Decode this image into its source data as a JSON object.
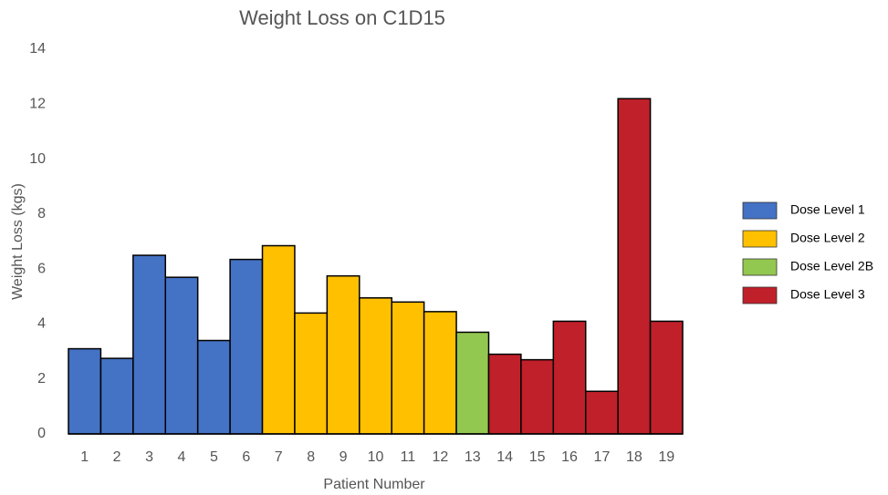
{
  "chart_data": {
    "type": "bar",
    "title": "Weight Loss on C1D15",
    "x_label": "Patient Number",
    "y_label": "Weight Loss (kgs)",
    "categories": [
      "1",
      "2",
      "3",
      "4",
      "5",
      "6",
      "7",
      "8",
      "9",
      "10",
      "11",
      "12",
      "13",
      "14",
      "15",
      "16",
      "17",
      "18",
      "19"
    ],
    "series": [
      {
        "name": "Dose Level 1",
        "color": "#4472c4",
        "values": [
          3.1,
          2.75,
          6.5,
          5.7,
          3.4,
          6.35,
          null,
          null,
          null,
          null,
          null,
          null,
          null,
          null,
          null,
          null,
          null,
          null,
          null
        ]
      },
      {
        "name": "Dose Level 2",
        "color": "#ffc000",
        "values": [
          null,
          null,
          null,
          null,
          null,
          null,
          6.85,
          4.4,
          5.75,
          4.95,
          4.8,
          4.45,
          null,
          null,
          null,
          null,
          null,
          null,
          null
        ]
      },
      {
        "name": "Dose Level 2B",
        "color": "#92c84f",
        "values": [
          null,
          null,
          null,
          null,
          null,
          null,
          null,
          null,
          null,
          null,
          null,
          null,
          3.7,
          null,
          null,
          null,
          null,
          null,
          null
        ]
      },
      {
        "name": "Dose Level 3",
        "color": "#c0202a",
        "values": [
          null,
          null,
          null,
          null,
          null,
          null,
          null,
          null,
          null,
          null,
          null,
          null,
          null,
          2.9,
          2.7,
          4.1,
          1.55,
          12.2,
          4.1
        ]
      }
    ],
    "ylim": [
      0,
      14
    ],
    "yticks": [
      0,
      2,
      4,
      6,
      8,
      10,
      12,
      14
    ],
    "grid": false,
    "legend": "right"
  }
}
